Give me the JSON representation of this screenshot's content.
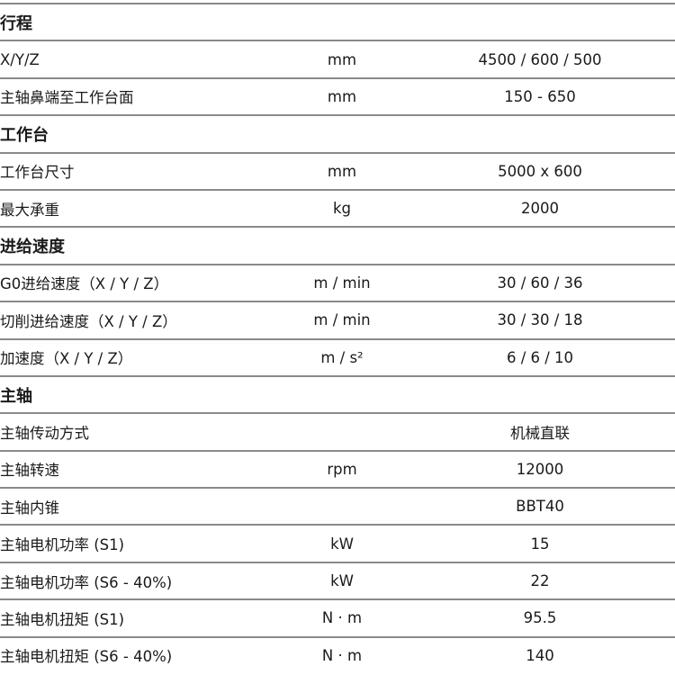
{
  "rows": [
    {
      "type": "section",
      "label": "行程"
    },
    {
      "type": "item",
      "label": "X/Y/Z",
      "unit": "mm",
      "value": "4500 / 600 / 500"
    },
    {
      "type": "item",
      "label": "主轴鼻端至工作台面",
      "unit": "mm",
      "value": "150 - 650"
    },
    {
      "type": "section",
      "label": "工作台"
    },
    {
      "type": "item",
      "label": "工作台尺寸",
      "unit": "mm",
      "value": "5000 x 600"
    },
    {
      "type": "item",
      "label": "最大承重",
      "unit": "kg",
      "value": "2000"
    },
    {
      "type": "section",
      "label": "进给速度"
    },
    {
      "type": "item",
      "label": "G0进给速度（X / Y / Z）",
      "unit": "m / min",
      "value": "30 / 60 / 36"
    },
    {
      "type": "item",
      "label": "切削进给速度（X / Y / Z）",
      "unit": "m / min",
      "value": "30 / 30 / 18"
    },
    {
      "type": "item",
      "label": "加速度（X / Y / Z）",
      "unit": "m / s²",
      "value": "6 / 6 / 10"
    },
    {
      "type": "section",
      "label": "主轴"
    },
    {
      "type": "item",
      "label": "主轴传动方式",
      "unit": "",
      "value": "机械直联"
    },
    {
      "type": "item",
      "label": "主轴转速",
      "unit": "rpm",
      "value": "12000"
    },
    {
      "type": "item",
      "label": "主轴内锥",
      "unit": "",
      "value": "BBT40"
    },
    {
      "type": "item",
      "label": "主轴电机功率 (S1)",
      "unit": "kW",
      "value": "15"
    },
    {
      "type": "item",
      "label": "主轴电机功率 (S6 - 40%)",
      "unit": "kW",
      "value": "22"
    },
    {
      "type": "item",
      "label": "主轴电机扭矩 (S1)",
      "unit": "N · m",
      "value": "95.5"
    },
    {
      "type": "item",
      "label": "主轴电机扭矩 (S6 - 40%)",
      "unit": "N · m",
      "value": "140"
    }
  ]
}
